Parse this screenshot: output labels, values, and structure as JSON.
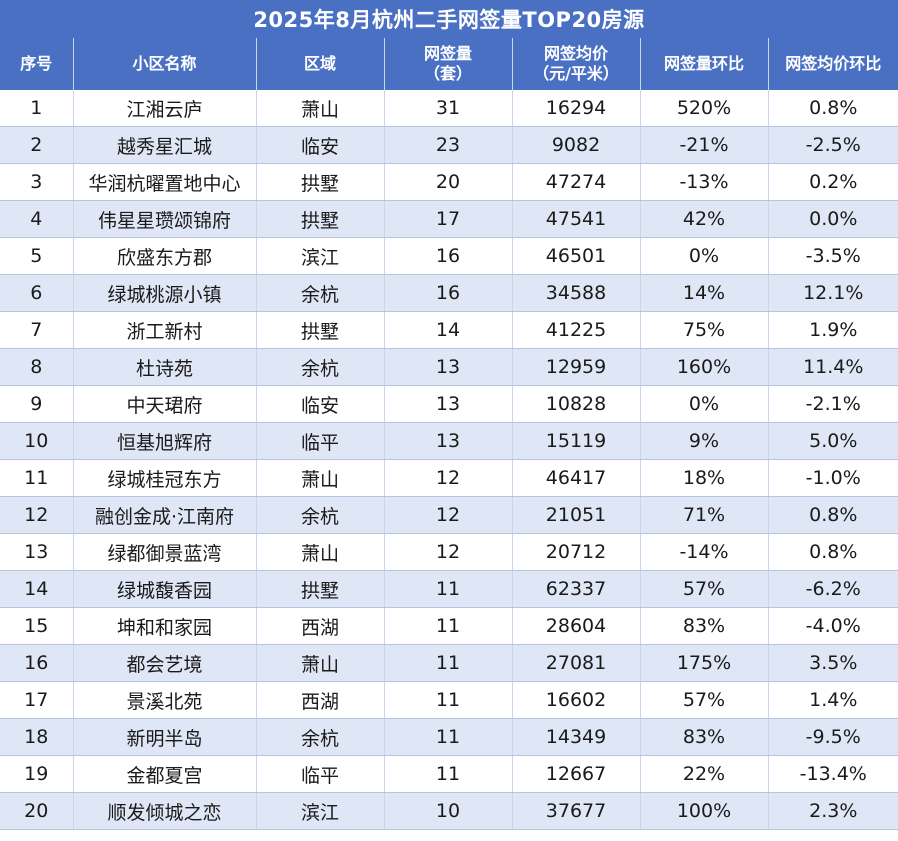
{
  "title": "2025年8月杭州二手网签量TOP20房源",
  "headers": [
    {
      "l1": "序号",
      "l2": ""
    },
    {
      "l1": "小区名称",
      "l2": ""
    },
    {
      "l1": "区域",
      "l2": ""
    },
    {
      "l1": "网签量",
      "l2": "（套）"
    },
    {
      "l1": "网签均价",
      "l2": "（元/平米）"
    },
    {
      "l1": "网签量环比",
      "l2": ""
    },
    {
      "l1": "网签均价环比",
      "l2": ""
    }
  ],
  "rows": [
    [
      "1",
      "江湘云庐",
      "萧山",
      "31",
      "16294",
      "520%",
      "0.8%"
    ],
    [
      "2",
      "越秀星汇城",
      "临安",
      "23",
      "9082",
      "-21%",
      "-2.5%"
    ],
    [
      "3",
      "华润杭曜置地中心",
      "拱墅",
      "20",
      "47274",
      "-13%",
      "0.2%"
    ],
    [
      "4",
      "伟星星瓒颂锦府",
      "拱墅",
      "17",
      "47541",
      "42%",
      "0.0%"
    ],
    [
      "5",
      "欣盛东方郡",
      "滨江",
      "16",
      "46501",
      "0%",
      "-3.5%"
    ],
    [
      "6",
      "绿城桃源小镇",
      "余杭",
      "16",
      "34588",
      "14%",
      "12.1%"
    ],
    [
      "7",
      "浙工新村",
      "拱墅",
      "14",
      "41225",
      "75%",
      "1.9%"
    ],
    [
      "8",
      "杜诗苑",
      "余杭",
      "13",
      "12959",
      "160%",
      "11.4%"
    ],
    [
      "9",
      "中天珺府",
      "临安",
      "13",
      "10828",
      "0%",
      "-2.1%"
    ],
    [
      "10",
      "恒基旭辉府",
      "临平",
      "13",
      "15119",
      "9%",
      "5.0%"
    ],
    [
      "11",
      "绿城桂冠东方",
      "萧山",
      "12",
      "46417",
      "18%",
      "-1.0%"
    ],
    [
      "12",
      "融创金成·江南府",
      "余杭",
      "12",
      "21051",
      "71%",
      "0.8%"
    ],
    [
      "13",
      "绿都御景蓝湾",
      "萧山",
      "12",
      "20712",
      "-14%",
      "0.8%"
    ],
    [
      "14",
      "绿城馥香园",
      "拱墅",
      "11",
      "62337",
      "57%",
      "-6.2%"
    ],
    [
      "15",
      "坤和和家园",
      "西湖",
      "11",
      "28604",
      "83%",
      "-4.0%"
    ],
    [
      "16",
      "都会艺境",
      "萧山",
      "11",
      "27081",
      "175%",
      "3.5%"
    ],
    [
      "17",
      "景溪北苑",
      "西湖",
      "11",
      "16602",
      "57%",
      "1.4%"
    ],
    [
      "18",
      "新明半岛",
      "余杭",
      "11",
      "14349",
      "83%",
      "-9.5%"
    ],
    [
      "19",
      "金都夏宫",
      "临平",
      "11",
      "12667",
      "22%",
      "-13.4%"
    ],
    [
      "20",
      "顺发倾城之恋",
      "滨江",
      "10",
      "37677",
      "100%",
      "2.3%"
    ]
  ],
  "colors": {
    "header_bg": "#4a70c4",
    "stripe": "#dfe6f5"
  }
}
